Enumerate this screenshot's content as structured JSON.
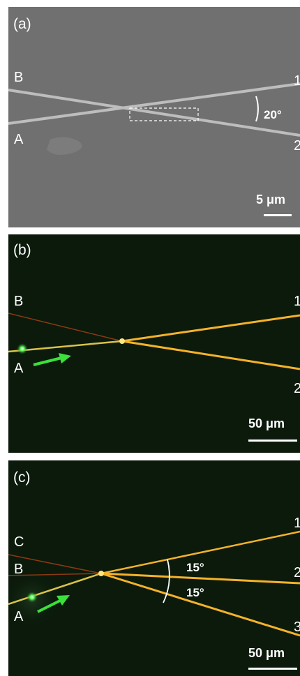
{
  "panels": [
    {
      "label": "(a)",
      "wire_labels_left": [
        "B",
        "A"
      ],
      "output_labels": [
        "1",
        "2"
      ],
      "angle": "20°",
      "scale_bar": "5 μm"
    },
    {
      "label": "(b)",
      "wire_labels_left": [
        "B",
        "A"
      ],
      "output_labels": [
        "1",
        "2"
      ],
      "scale_bar": "50 μm"
    },
    {
      "label": "(c)",
      "wire_labels_left": [
        "C",
        "B",
        "A"
      ],
      "output_labels": [
        "1",
        "2",
        "3"
      ],
      "angles": [
        "15°",
        "15°"
      ],
      "scale_bar": "50 μm"
    }
  ],
  "colors": {
    "sem_background": "#707070",
    "nanowire_sem": "#bdbdbd",
    "dark_background": "#0b1a0b",
    "guided_light": "#f5b22a",
    "passive_wire": "#8a3a12",
    "excitation_arrow": "#3ce03c"
  }
}
